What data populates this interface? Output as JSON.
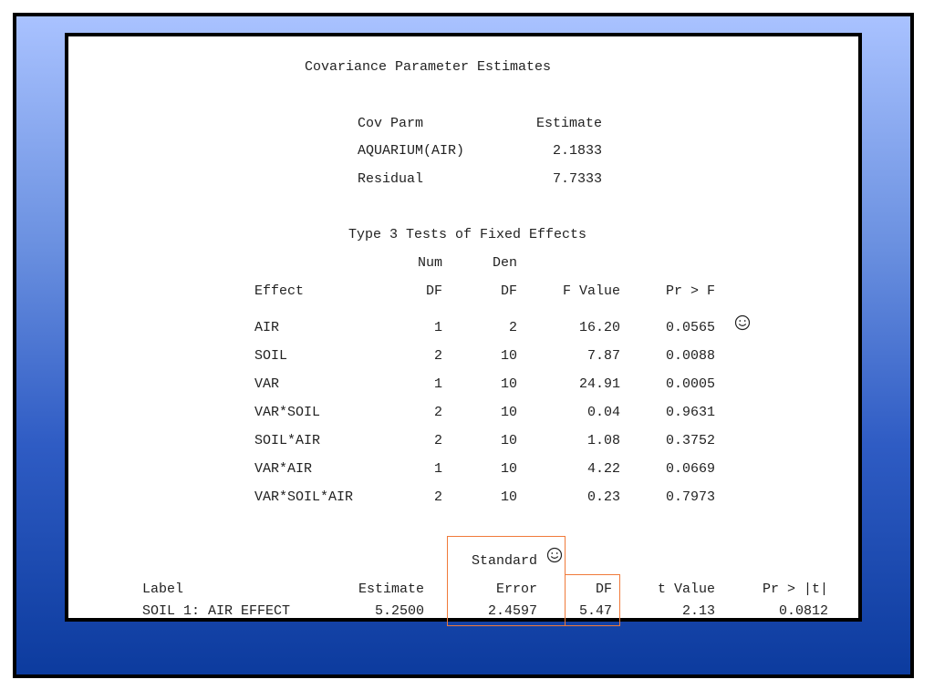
{
  "cov_title": "Covariance Parameter Estimates",
  "cov_headers": {
    "parm": "Cov Parm",
    "estimate": "Estimate"
  },
  "cov_rows": [
    {
      "parm": "AQUARIUM(AIR)",
      "estimate": "2.1833"
    },
    {
      "parm": "Residual",
      "estimate": "7.7333"
    }
  ],
  "type3_title": "Type 3 Tests of Fixed Effects",
  "type3_headers": {
    "numdf_top": "Num",
    "dendf_top": "Den",
    "effect": "Effect",
    "numdf": "DF",
    "dendf": "DF",
    "fvalue": "F Value",
    "prf": "Pr > F"
  },
  "type3_rows": [
    {
      "effect": "AIR",
      "numdf": "1",
      "dendf": "2",
      "fvalue": "16.20",
      "prf": "0.0565"
    },
    {
      "effect": "SOIL",
      "numdf": "2",
      "dendf": "10",
      "fvalue": "7.87",
      "prf": "0.0088"
    },
    {
      "effect": "VAR",
      "numdf": "1",
      "dendf": "10",
      "fvalue": "24.91",
      "prf": "0.0005"
    },
    {
      "effect": "VAR*SOIL",
      "numdf": "2",
      "dendf": "10",
      "fvalue": "0.04",
      "prf": "0.9631"
    },
    {
      "effect": "SOIL*AIR",
      "numdf": "2",
      "dendf": "10",
      "fvalue": "1.08",
      "prf": "0.3752"
    },
    {
      "effect": "VAR*AIR",
      "numdf": "1",
      "dendf": "10",
      "fvalue": "4.22",
      "prf": "0.0669"
    },
    {
      "effect": "VAR*SOIL*AIR",
      "numdf": "2",
      "dendf": "10",
      "fvalue": "0.23",
      "prf": "0.7973"
    }
  ],
  "estimate_headers": {
    "stderr_top": "Standard",
    "label": "Label",
    "estimate": "Estimate",
    "stderr": "Error",
    "df": "DF",
    "tvalue": "t Value",
    "prt": "Pr > |t|"
  },
  "estimate_row": {
    "label": "SOIL 1: AIR EFFECT",
    "estimate": "5.2500",
    "stderr": "2.4597",
    "df": "5.47",
    "tvalue": "2.13",
    "prt": "0.0812"
  },
  "icons": {
    "smiley": "smiley-face-icon"
  },
  "colors": {
    "highlight_box": "#f07a3a",
    "background_top": "#a9c2ff",
    "background_bottom": "#0c3b9e"
  }
}
